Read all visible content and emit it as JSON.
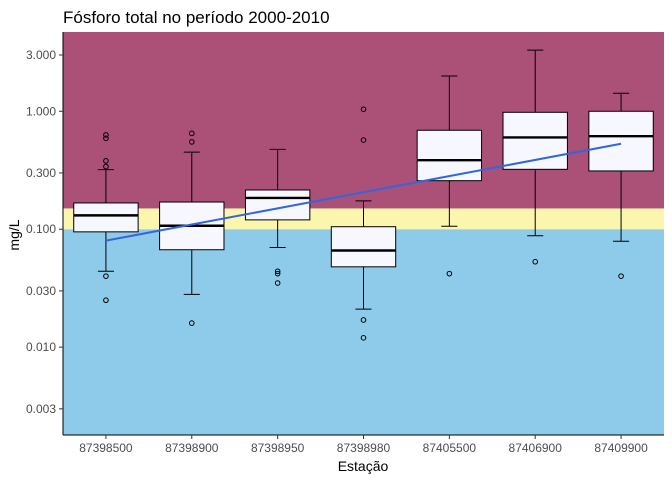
{
  "chart_data": {
    "type": "boxplot",
    "title": "Fósforo total no período 2000-2010",
    "xlabel": "Estação",
    "ylabel": "mg/L",
    "y_scale": "log10",
    "ylim": [
      0.0018,
      4.7
    ],
    "y_ticks": [
      0.003,
      0.01,
      0.03,
      0.1,
      0.3,
      1,
      3
    ],
    "y_tick_labels": [
      "0.003",
      "0.010",
      "0.030",
      "0.100",
      "0.300",
      "1.000",
      "3.000"
    ],
    "grid": false,
    "bands": [
      {
        "from": 0.0018,
        "to": 0.1,
        "color": "#8ecbea"
      },
      {
        "from": 0.1,
        "to": 0.15,
        "color": "#fbf6ad"
      },
      {
        "from": 0.15,
        "to": 4.7,
        "color": "#ab5077"
      }
    ],
    "box_fill": "#f7f8ff",
    "trend_color": "#3366dd",
    "categories": [
      "87398500",
      "87398900",
      "87398950",
      "87398980",
      "87405500",
      "87406900",
      "87409900"
    ],
    "boxes": [
      {
        "min": 0.044,
        "q1": 0.095,
        "median": 0.131,
        "q3": 0.167,
        "max": 0.32,
        "outliers": [
          0.025,
          0.04,
          0.34,
          0.38,
          0.59,
          0.63
        ]
      },
      {
        "min": 0.028,
        "q1": 0.067,
        "median": 0.107,
        "q3": 0.17,
        "max": 0.45,
        "outliers": [
          0.016,
          0.55,
          0.65
        ]
      },
      {
        "min": 0.07,
        "q1": 0.12,
        "median": 0.184,
        "q3": 0.215,
        "max": 0.475,
        "outliers": [
          0.035,
          0.042,
          0.044
        ]
      },
      {
        "min": 0.021,
        "q1": 0.048,
        "median": 0.066,
        "q3": 0.105,
        "max": 0.174,
        "outliers": [
          0.012,
          0.017,
          0.57,
          1.04
        ]
      },
      {
        "min": 0.106,
        "q1": 0.258,
        "median": 0.385,
        "q3": 0.69,
        "max": 1.99,
        "outliers": [
          0.042
        ]
      },
      {
        "min": 0.088,
        "q1": 0.322,
        "median": 0.6,
        "q3": 0.98,
        "max": 3.3,
        "outliers": [
          0.053
        ]
      },
      {
        "min": 0.079,
        "q1": 0.312,
        "median": 0.615,
        "q3": 1.0,
        "max": 1.42,
        "outliers": [
          0.04
        ]
      }
    ],
    "trend": {
      "start": 0.08,
      "end": 0.53
    }
  }
}
